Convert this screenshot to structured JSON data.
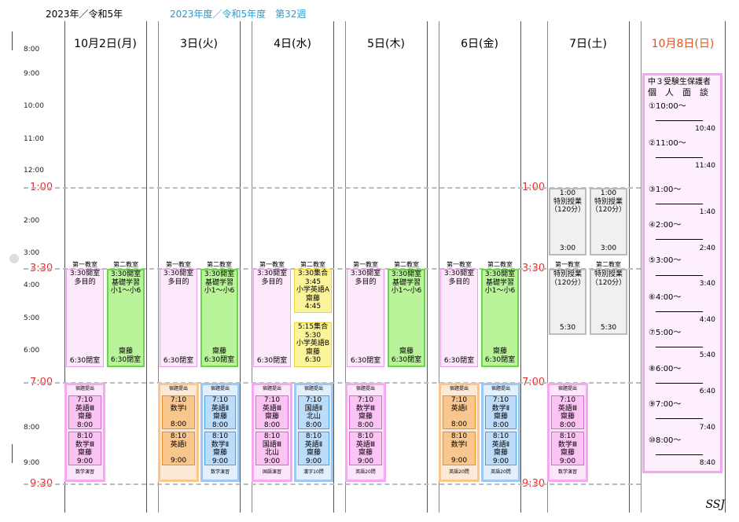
{
  "header": {
    "year": "2023年／令和5年",
    "fiscal": "2023年度／令和5年度　第32週"
  },
  "days": [
    "10月2日(月)",
    "3日(火)",
    "4日(水)",
    "5日(木)",
    "6日(金)",
    "7日(土)",
    "10月8日(日)"
  ],
  "hours": [
    "8:00",
    "9:00",
    "10:00",
    "11:00",
    "12:00",
    "2:00",
    "3:00",
    "4:00",
    "5:00",
    "6:00",
    "8:00",
    "9:00"
  ],
  "big_times": {
    "t100": "1:00",
    "t330": "3:30",
    "t700": "7:00",
    "t930": "9:30"
  },
  "rooms": {
    "r1": "第一教室",
    "r2": "第二教室"
  },
  "blocks": {
    "open": "3:30開室",
    "tamokuteki": "多目的",
    "close": "6:30閉室",
    "kiso": "基礎学習",
    "sho": "小1～小6",
    "saito": "齋藤",
    "shugo330": "3:30集合",
    "t345": "3:45",
    "shoeiA": "小学英語A",
    "t445": "4:45",
    "shugo515": "5:15集合",
    "t530": "5:30",
    "shoeiB": "小学英語B",
    "t630": "6:30",
    "shukudai": "宿題提出",
    "t710": "7:10",
    "t800": "8:00",
    "t810": "8:10",
    "t900": "9:00",
    "eigo3": "英語Ⅲ",
    "sugaku3": "数学Ⅲ",
    "kokugo3": "国語Ⅲ",
    "sugaku1": "数学Ⅰ",
    "eigo1": "英語Ⅰ",
    "eigo2": "英語Ⅱ",
    "sugaku2": "数学Ⅱ",
    "kokugo2": "国語Ⅱ",
    "kitayama": "北山",
    "sugakuenshu": "数学演習",
    "kokugoenshu": "国語演習",
    "kanji10": "漢字10問",
    "eigo20": "英語20問",
    "t100": "1:00",
    "tokubetsu": "特別授業",
    "min120": "（120分）",
    "t300": "3:00"
  },
  "sunday": {
    "title1": "中３受験生保護者",
    "title2": "個　人　面　談",
    "slots": [
      "①10:00～",
      "②11:00～",
      "③1:00～",
      "④2:00～",
      "⑤3:00～",
      "⑥4:00～",
      "⑦5:00～",
      "⑧6:00～",
      "⑨7:00～",
      "⑩8:00～"
    ],
    "ends": [
      "10:40",
      "11:40",
      "1:40",
      "2:40",
      "3:40",
      "4:40",
      "5:40",
      "6:40",
      "7:40",
      "8:40"
    ]
  },
  "footer": "SSJ"
}
